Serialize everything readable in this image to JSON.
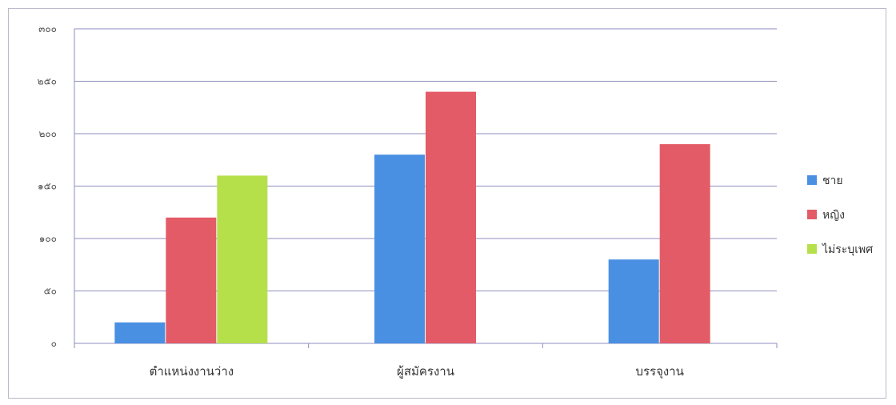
{
  "chart_data": {
    "type": "bar",
    "title": "",
    "xlabel": "",
    "ylabel": "",
    "categories": [
      "ตำแหน่งงานว่าง",
      "ผู้สมัครงาน",
      "บรรจุงาน"
    ],
    "series": [
      {
        "name": "ชาย",
        "color": "#4a90e2",
        "values": [
          20,
          180,
          80
        ]
      },
      {
        "name": "หญิง",
        "color": "#e35b66",
        "values": [
          120,
          240,
          190
        ]
      },
      {
        "name": "ไม่ระบุเพศ",
        "color": "#b5e04a",
        "values": [
          160,
          null,
          null
        ]
      }
    ],
    "ylim": [
      0,
      300
    ],
    "yticks": [
      0,
      50,
      100,
      150,
      200,
      250,
      300
    ],
    "ytick_labels": [
      "๐",
      "๕๐",
      "๑๐๐",
      "๑๕๐",
      "๒๐๐",
      "๒๕๐",
      "๓๐๐"
    ],
    "grid": true,
    "legend_position": "right"
  }
}
